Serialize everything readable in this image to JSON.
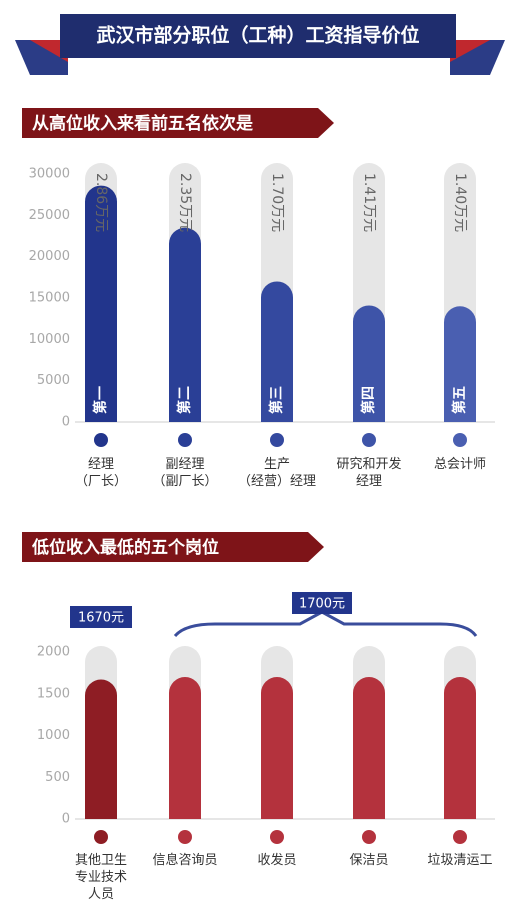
{
  "title": "武汉市部分职位（工种）工资指导价位",
  "chart_data": [
    {
      "type": "bar",
      "title": "从高位收入来看前五名依次是",
      "categories": [
        "经理\n（厂长）",
        "副经理\n（副厂长）",
        "生产\n（经营）经理",
        "研究和开发\n经理",
        "总会计师"
      ],
      "values": [
        28600,
        23500,
        17000,
        14100,
        14000
      ],
      "value_labels": [
        "2.86万元",
        "2.35万元",
        "1.70万元",
        "1.41万元",
        "1.40万元"
      ],
      "ranks": [
        "第一",
        "第二",
        "第三",
        "第四",
        "第五"
      ],
      "colors": [
        "#22358c",
        "#2a3f96",
        "#34499f",
        "#3e54a8",
        "#4a5fb1"
      ],
      "ylim": [
        0,
        30000
      ],
      "yticks": [
        0,
        5000,
        10000,
        15000,
        20000,
        25000,
        30000
      ],
      "grid": false
    },
    {
      "type": "bar",
      "title": "低位收入最低的五个岗位",
      "categories": [
        "其他卫生\n专业技术\n人员",
        "信息咨询员",
        "收发员",
        "保洁员",
        "垃圾清运工"
      ],
      "values": [
        1670,
        1700,
        1700,
        1700,
        1700
      ],
      "annotations": [
        "1670元",
        "1700元"
      ],
      "colors": [
        "#8e1d24",
        "#b4323d",
        "#b4323d",
        "#b4323d",
        "#b4323d"
      ],
      "ylim": [
        0,
        2000
      ],
      "yticks": [
        0,
        500,
        1000,
        1500,
        2000
      ],
      "grid": false
    }
  ]
}
